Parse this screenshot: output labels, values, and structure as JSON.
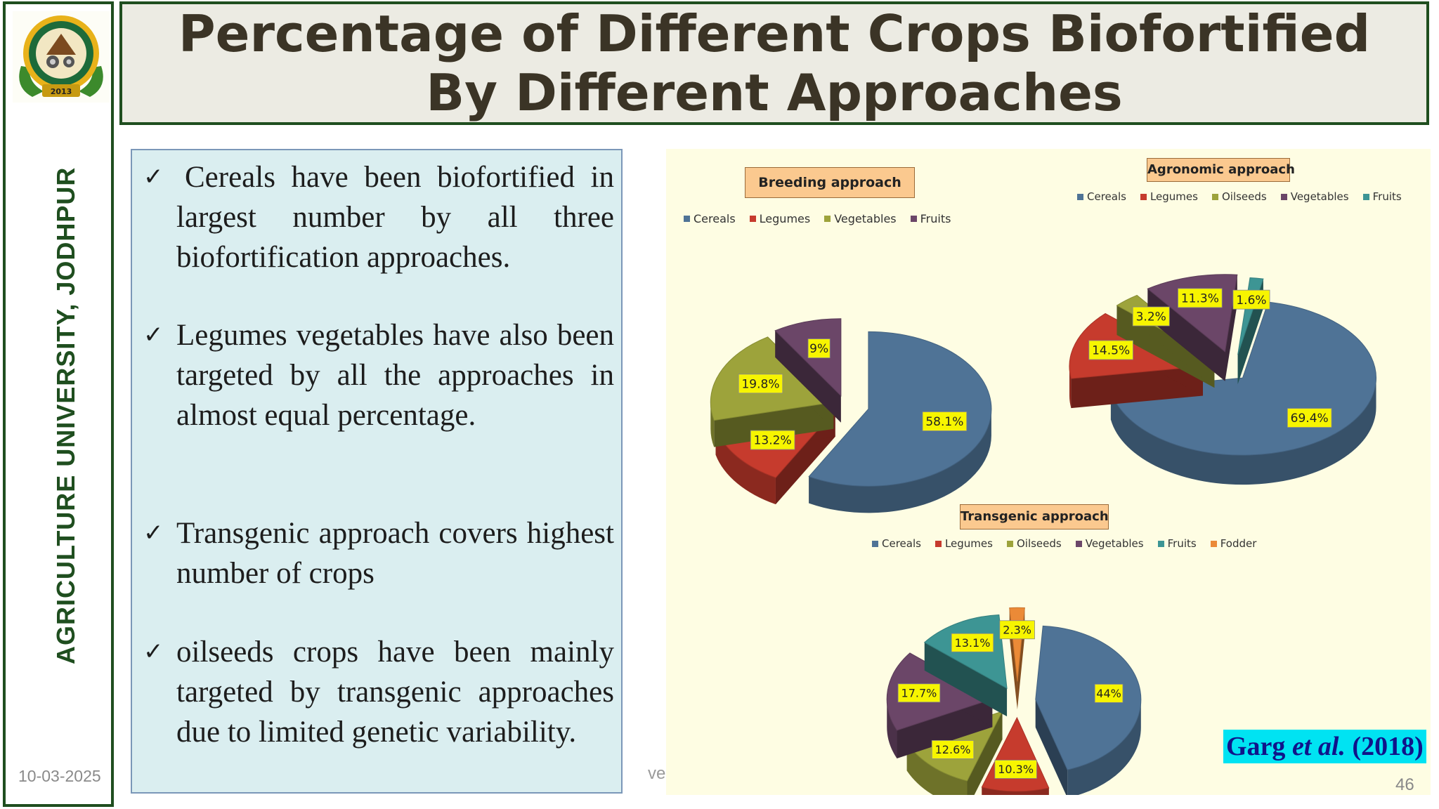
{
  "slide": {
    "title": "Percentage of Different Crops Biofortified By Different  Approaches",
    "sidebar_text": "AGRICULTURE UNIVERSITY, JODHPUR",
    "date": "10-03-2025",
    "page_number": "46",
    "hidden_text": "veg",
    "citation": {
      "author": "Garg",
      "etal": "et al.",
      "year": "(2018)"
    },
    "bullets": [
      "Cereals have been biofortified in largest number by all three biofortification approaches.",
      "Legumes vegetables have also been targeted by all the approaches in almost equal percentage.",
      "Transgenic approach covers highest number of crops",
      "oilseeds crops have been mainly targeted by transgenic approaches due to limited genetic variability."
    ],
    "logo": {
      "icon": "university-seal-icon",
      "year": "2013"
    },
    "colors": {
      "green": "#1f4e1f",
      "title": "#3b3426",
      "textbox": "#daeef0",
      "chart_bg": "#fefde3",
      "label_bg": "#f7f500"
    }
  },
  "chart_data": [
    {
      "type": "pie",
      "title": "Breeding approach",
      "categories": [
        "Cereals",
        "Legumes",
        "Vegetables",
        "Fruits"
      ],
      "values": [
        58.1,
        13.2,
        19.8,
        9
      ],
      "labels": [
        "58.1%",
        "13.2%",
        "19.8%",
        "9%"
      ],
      "colors": [
        "#4f7396",
        "#c63b2d",
        "#9da33b",
        "#6b4668"
      ],
      "legend": "top"
    },
    {
      "type": "pie",
      "title": "Agronomic approach",
      "categories": [
        "Cereals",
        "Legumes",
        "Oilseeds",
        "Vegetables",
        "Fruits"
      ],
      "values": [
        69.4,
        14.5,
        3.2,
        11.3,
        1.6
      ],
      "labels": [
        "69.4%",
        "14.5%",
        "3.2%",
        "11.3%",
        "1.6%"
      ],
      "colors": [
        "#4f7396",
        "#c63b2d",
        "#9da33b",
        "#6b4668",
        "#3d9594"
      ],
      "legend": "top"
    },
    {
      "type": "pie",
      "title": "Transgenic approach",
      "categories": [
        "Cereals",
        "Legumes",
        "Oilseeds",
        "Vegetables",
        "Fruits",
        "Fodder"
      ],
      "values": [
        44,
        10.3,
        12.6,
        17.7,
        13.1,
        2.3
      ],
      "labels": [
        "44%",
        "10.3%",
        "12.6%",
        "17.7%",
        "13.1%",
        "2.3%"
      ],
      "colors": [
        "#4f7396",
        "#c63b2d",
        "#9da33b",
        "#6b4668",
        "#3d9594",
        "#eb8a37"
      ],
      "legend": "top"
    }
  ]
}
